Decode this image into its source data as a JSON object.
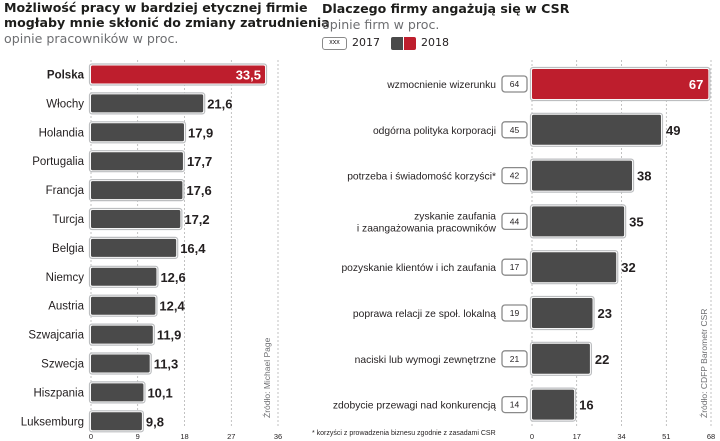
{
  "colors": {
    "bar": "#4a4a4a",
    "bar_highlight": "#be1e2d",
    "bar_outline": "#bcbec0",
    "text": "#231f20",
    "grid": "#9a9a9a",
    "muted": "#6d6e71"
  },
  "left": {
    "title_line1": "Możliwość pracy w bardziej etycznej firmie",
    "title_line2": "mogłaby mnie skłonić do zmiany zatrudnienia",
    "subtitle": "opinie pracowników w proc.",
    "source": "Źródło: Michael Page"
  },
  "right": {
    "title": "Dlaczego firmy angażują się w CSR",
    "subtitle": "opinie firm w proc.",
    "legend_sample": "xxx",
    "legend_2017": "2017",
    "legend_2018": "2018",
    "source": "Źródło: CDFP Barometr CSR",
    "footnote": "* korzyści z prowadzenia biznesu zgodnie z zasadami CSR"
  },
  "chart_data": [
    {
      "type": "bar",
      "orientation": "horizontal",
      "title": "Możliwość pracy w bardziej etycznej firmie mogłaby mnie skłonić do zmiany zatrudnienia",
      "subtitle": "opinie pracowników w proc.",
      "xlim": [
        0,
        36
      ],
      "xticks": [
        0,
        9,
        18,
        27,
        36
      ],
      "grid": true,
      "categories": [
        "Polska",
        "Włochy",
        "Holandia",
        "Portugalia",
        "Francja",
        "Turcja",
        "Belgia",
        "Niemcy",
        "Austria",
        "Szwajcaria",
        "Szwecja",
        "Hiszpania",
        "Luksemburg"
      ],
      "values": [
        33.5,
        21.6,
        17.9,
        17.7,
        17.6,
        17.2,
        16.4,
        12.6,
        12.4,
        11.9,
        11.3,
        10.1,
        9.8
      ],
      "value_labels": [
        "33,5",
        "21,6",
        "17,9",
        "17,7",
        "17,6",
        "17,2",
        "16,4",
        "12,6",
        "12,4",
        "11,9",
        "11,3",
        "10,1",
        "9,8"
      ],
      "highlight": "Polska"
    },
    {
      "type": "bar",
      "orientation": "horizontal",
      "title": "Dlaczego firmy angażują się w CSR",
      "subtitle": "opinie firm w proc.",
      "xlim": [
        0,
        68
      ],
      "xticks": [
        0,
        17,
        34,
        51,
        68
      ],
      "grid": true,
      "categories": [
        [
          "wzmocnienie wizerunku"
        ],
        [
          "odgórna polityka korporacji"
        ],
        [
          "potrzeba i świadomość korzyści*"
        ],
        [
          "zyskanie zaufania",
          "i zaangażowania pracowników"
        ],
        [
          "pozyskanie klientów i ich zaufania"
        ],
        [
          "poprawa relacji ze społ. lokalną"
        ],
        [
          "naciski lub wymogi zewnętrzne"
        ],
        [
          "zdobycie przewagi nad konkurencją"
        ]
      ],
      "series": [
        {
          "name": "2018",
          "values": [
            67,
            49,
            38,
            35,
            32,
            23,
            22,
            16
          ]
        },
        {
          "name": "2017",
          "values": [
            64,
            45,
            42,
            44,
            17,
            19,
            21,
            14
          ]
        }
      ],
      "highlight_index": 0
    }
  ]
}
